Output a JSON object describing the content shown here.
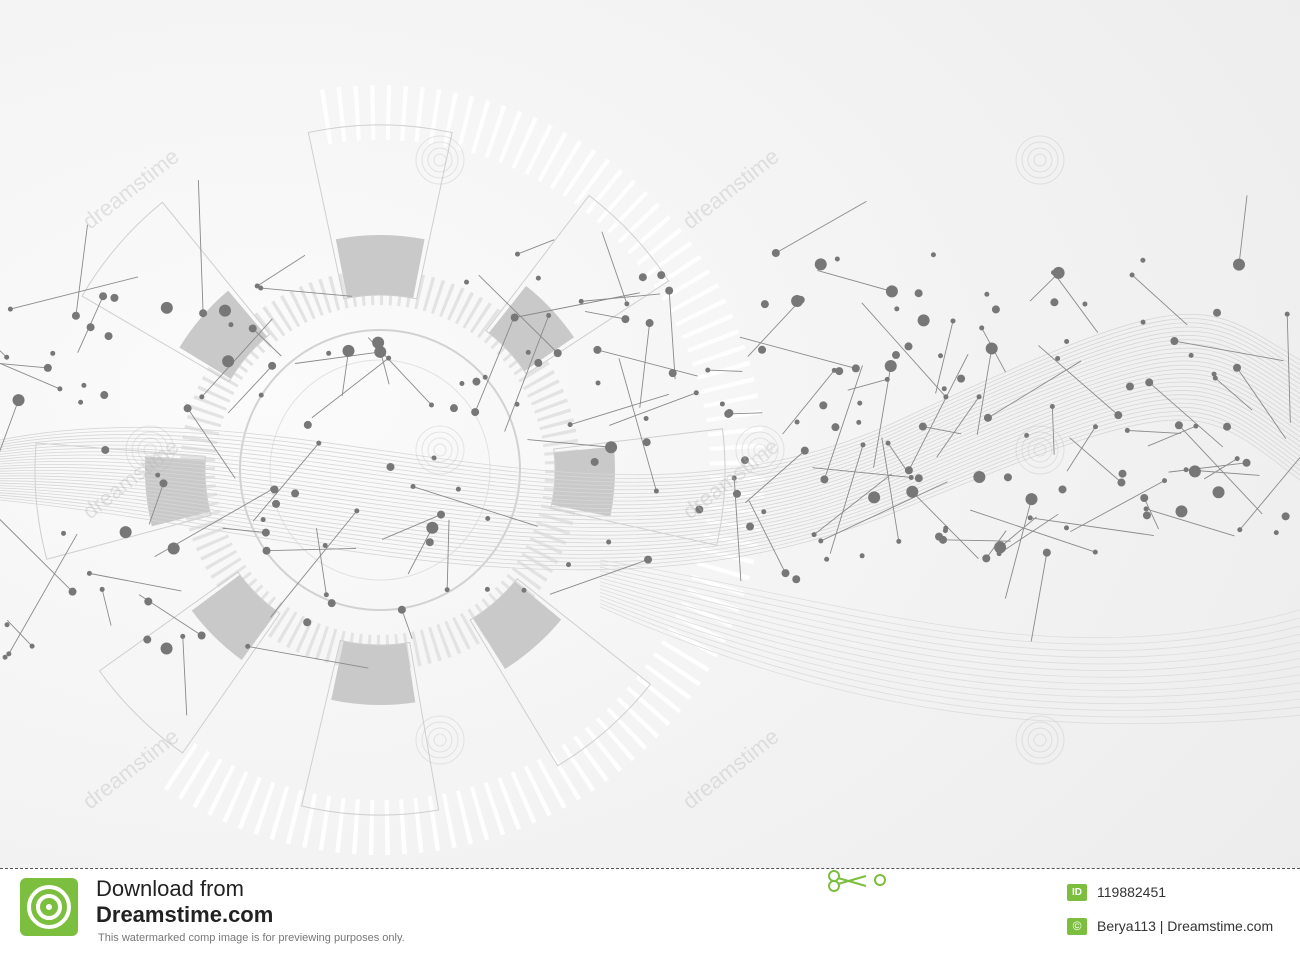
{
  "footer": {
    "download_line1": "Download from",
    "download_line2": "Dreamstime.com",
    "disclaimer": "This watermarked comp image is for previewing purposes only.",
    "id_badge": "ID",
    "image_id": "119882451",
    "copyright_symbol": "©",
    "credit": "Berya113 | Dreamstime.com"
  },
  "watermark": {
    "text": "dreamstime"
  },
  "colors": {
    "background": "#f4f4f4",
    "node": "#777777",
    "link": "#8a8a8a",
    "panel": "#c9c9c9",
    "brand_green": "#7cbf3f"
  },
  "icons": [
    "dreamstime-logo-icon",
    "scissors-icon",
    "copyright-icon"
  ]
}
